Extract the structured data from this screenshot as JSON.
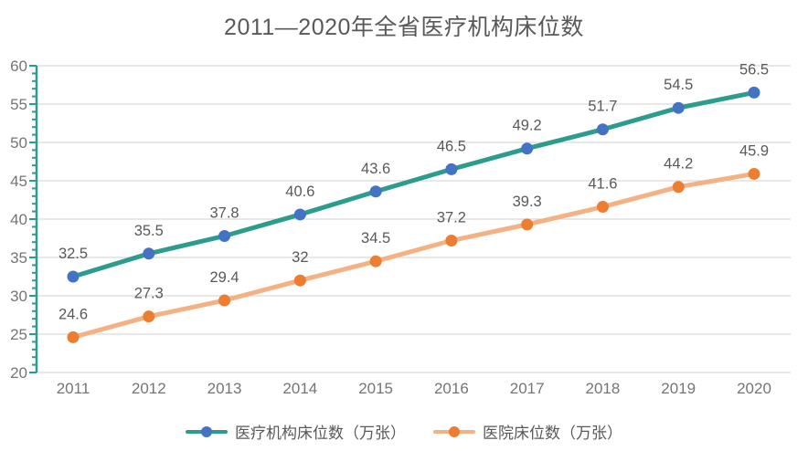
{
  "title": "2011—2020年全省医疗机构床位数",
  "chart_data": {
    "type": "line",
    "title": "2011—2020年全省医疗机构床位数",
    "categories": [
      "2011",
      "2012",
      "2013",
      "2014",
      "2015",
      "2016",
      "2017",
      "2018",
      "2019",
      "2020"
    ],
    "series": [
      {
        "name": "医疗机构床位数（万张）",
        "values": [
          32.5,
          35.5,
          37.8,
          40.6,
          43.6,
          46.5,
          49.2,
          51.7,
          54.5,
          56.5
        ],
        "line_color": "#2B9C8D",
        "marker_color": "#4472C4"
      },
      {
        "name": "医院床位数（万张）",
        "values": [
          24.6,
          27.3,
          29.4,
          32,
          34.5,
          37.2,
          39.3,
          41.6,
          44.2,
          45.9
        ],
        "line_color": "#F4B183",
        "marker_color": "#ED7D31"
      }
    ],
    "ylim": [
      20,
      60
    ],
    "ytick_step": 5,
    "yticks": [
      20,
      25,
      30,
      35,
      40,
      45,
      50,
      55,
      60
    ],
    "grid": "horizontal-only",
    "legend_position": "bottom",
    "data_labels": true,
    "axis_color": "#2B9C8D",
    "gridline_color": "#D9D9D9",
    "data_label_color": "#595959",
    "tick_label_color": "#757575"
  }
}
